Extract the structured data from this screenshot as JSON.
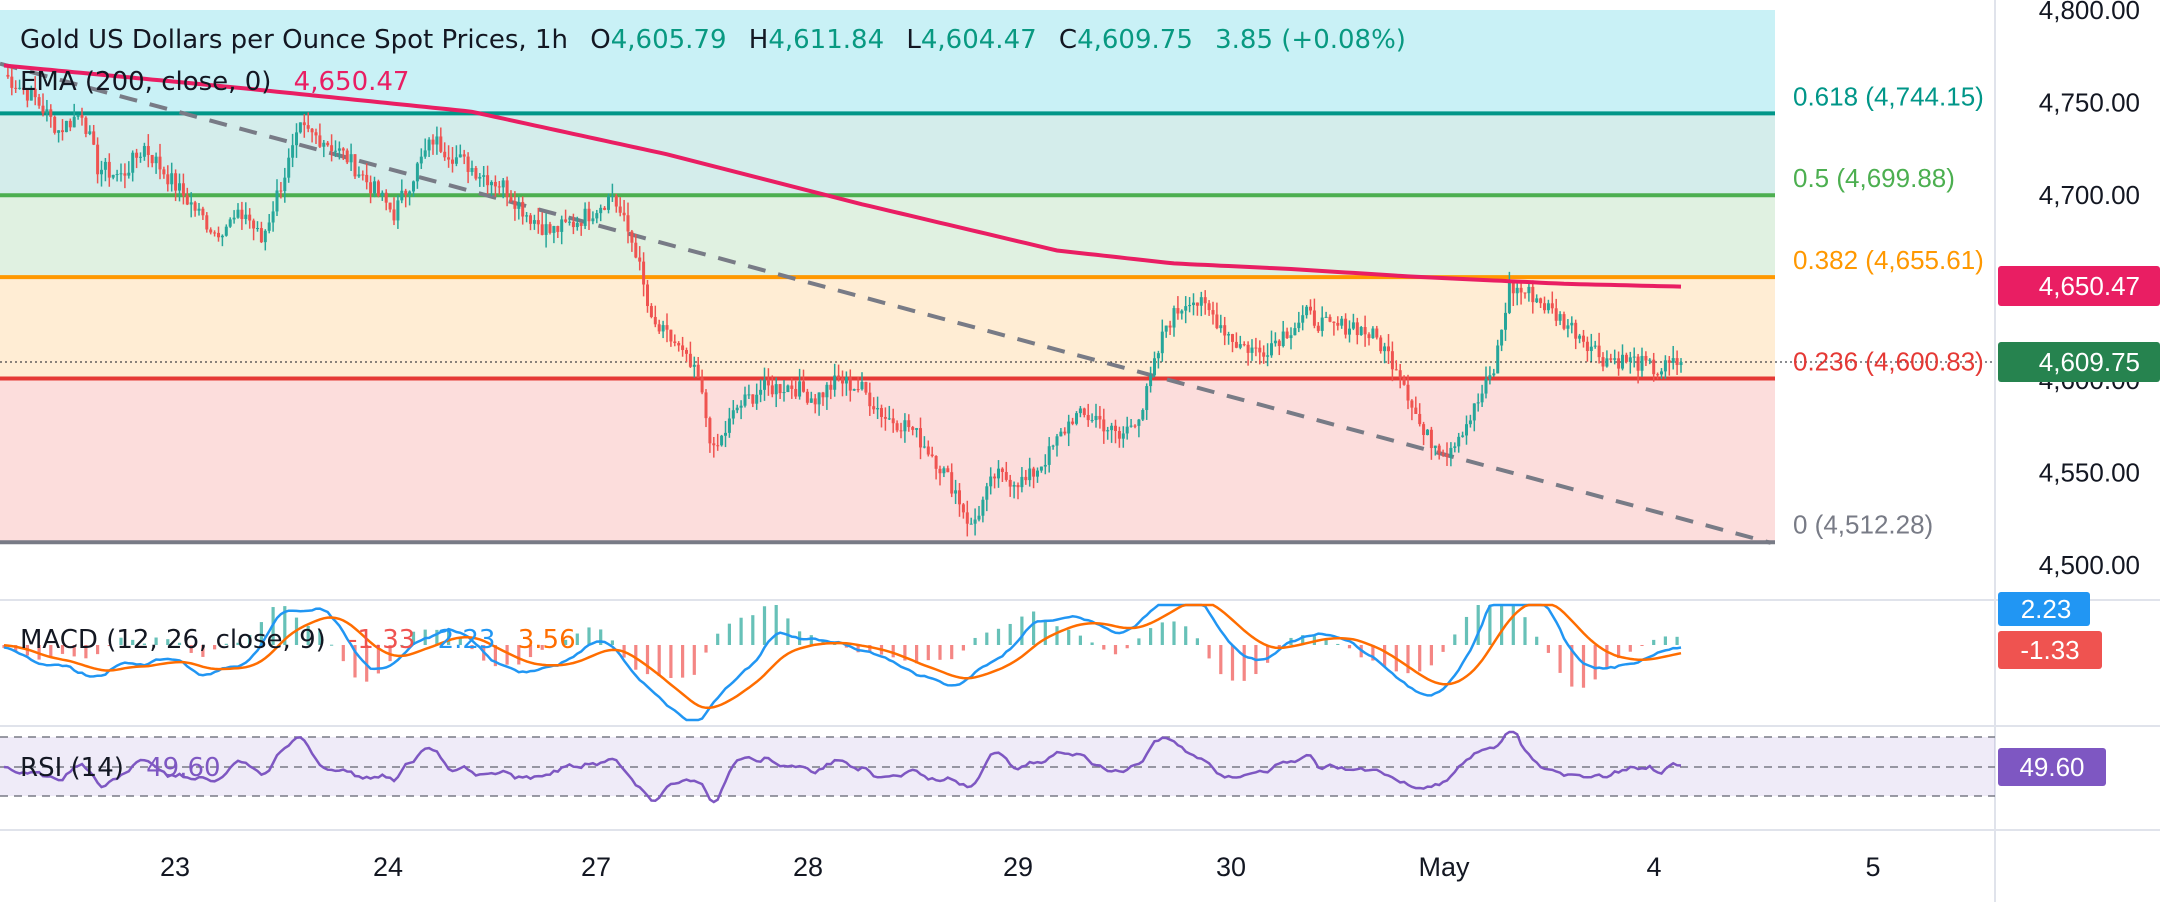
{
  "header": {
    "symbol": "Gold US Dollars per Ounce Spot Prices, 1h",
    "open_label": "O",
    "open": "4,605.79",
    "high_label": "H",
    "high": "4,611.84",
    "low_label": "L",
    "low": "4,604.47",
    "close_label": "C",
    "close": "4,609.75",
    "change": "3.85 (+0.08%)"
  },
  "ema_legend": {
    "label": "EMA (200, close, 0)",
    "value": "4,650.47"
  },
  "macd_legend": {
    "label": "MACD (12, 26, close, 9)",
    "hist": "-1.33",
    "macd": "2.23",
    "signal": "3.56"
  },
  "rsi_legend": {
    "label": "RSI (14)",
    "value": "49.60"
  },
  "price_axis": {
    "ticks": [
      "4,800.00",
      "4,750.00",
      "4,700.00",
      "4,650.00",
      "4,600.00",
      "4,550.00",
      "4,500.00"
    ]
  },
  "badges": {
    "ema": "4,650.47",
    "price": "4,609.75",
    "macd": "2.23",
    "hist": "-1.33",
    "rsi": "49.60"
  },
  "time_axis": {
    "labels": [
      "23",
      "24",
      "27",
      "28",
      "29",
      "30",
      "May",
      "4",
      "5"
    ]
  },
  "fib_levels": [
    {
      "label": "0.618 (4,744.15)",
      "ratio": 0.618,
      "price": 4744.15
    },
    {
      "label": "0.5 (4,699.88)",
      "ratio": 0.5,
      "price": 4699.88
    },
    {
      "label": "0.382 (4,655.61)",
      "ratio": 0.382,
      "price": 4655.61
    },
    {
      "label": "0.236 (4,600.83)",
      "ratio": 0.236,
      "price": 4600.83
    },
    {
      "label": "0 (4,512.28)",
      "ratio": 0,
      "price": 4512.28
    }
  ],
  "colors": {
    "up": "#26a69a",
    "down": "#ef5350",
    "ema": "#e91e63",
    "fib618": "#009688",
    "fib50": "#4caf50",
    "fib382": "#ff9800",
    "fib236": "#e53935",
    "fib0": "#787b86",
    "trend": "#787b86",
    "macd": "#2196f3",
    "signal": "#ff6d00",
    "rsi": "#7e57c2"
  },
  "chart_data": {
    "type": "candlestick",
    "title": "Gold US Dollars per Ounce Spot Prices, 1h",
    "ylim": [
      4500,
      4800
    ],
    "x_dates": [
      "23",
      "24",
      "27",
      "28",
      "29",
      "30",
      "May",
      "4",
      "5"
    ],
    "price_key_points": [
      [
        0,
        4765
      ],
      [
        8,
        4752
      ],
      [
        14,
        4735
      ],
      [
        20,
        4745
      ],
      [
        24,
        4715
      ],
      [
        30,
        4710
      ],
      [
        36,
        4726
      ],
      [
        42,
        4710
      ],
      [
        48,
        4695
      ],
      [
        54,
        4680
      ],
      [
        62,
        4690
      ],
      [
        66,
        4675
      ],
      [
        70,
        4700
      ],
      [
        76,
        4735
      ],
      [
        82,
        4730
      ],
      [
        88,
        4720
      ],
      [
        94,
        4705
      ],
      [
        100,
        4690
      ],
      [
        106,
        4715
      ],
      [
        110,
        4730
      ],
      [
        116,
        4720
      ],
      [
        122,
        4712
      ],
      [
        128,
        4705
      ],
      [
        134,
        4690
      ],
      [
        140,
        4680
      ],
      [
        146,
        4685
      ],
      [
        150,
        4690
      ],
      [
        156,
        4700
      ],
      [
        162,
        4670
      ],
      [
        166,
        4630
      ],
      [
        172,
        4620
      ],
      [
        178,
        4600
      ],
      [
        182,
        4560
      ],
      [
        188,
        4585
      ],
      [
        194,
        4595
      ],
      [
        202,
        4597
      ],
      [
        208,
        4590
      ],
      [
        214,
        4600
      ],
      [
        220,
        4595
      ],
      [
        226,
        4580
      ],
      [
        232,
        4575
      ],
      [
        238,
        4560
      ],
      [
        244,
        4540
      ],
      [
        248,
        4520
      ],
      [
        254,
        4548
      ],
      [
        262,
        4545
      ],
      [
        268,
        4560
      ],
      [
        274,
        4580
      ],
      [
        280,
        4580
      ],
      [
        286,
        4568
      ],
      [
        292,
        4585
      ],
      [
        298,
        4630
      ],
      [
        304,
        4645
      ],
      [
        310,
        4635
      ],
      [
        316,
        4620
      ],
      [
        322,
        4615
      ],
      [
        328,
        4625
      ],
      [
        334,
        4635
      ],
      [
        340,
        4628
      ],
      [
        346,
        4630
      ],
      [
        352,
        4622
      ],
      [
        358,
        4605
      ],
      [
        364,
        4570
      ],
      [
        370,
        4562
      ],
      [
        376,
        4580
      ],
      [
        382,
        4605
      ],
      [
        386,
        4650
      ],
      [
        392,
        4646
      ],
      [
        398,
        4635
      ],
      [
        404,
        4625
      ],
      [
        410,
        4612
      ],
      [
        418,
        4610
      ],
      [
        424,
        4605
      ],
      [
        430,
        4609.75
      ]
    ],
    "ema200_key_points": [
      [
        0,
        4770
      ],
      [
        60,
        4758
      ],
      [
        120,
        4745
      ],
      [
        170,
        4722
      ],
      [
        220,
        4695
      ],
      [
        270,
        4670
      ],
      [
        300,
        4663
      ],
      [
        330,
        4660
      ],
      [
        360,
        4656
      ],
      [
        400,
        4652
      ],
      [
        430,
        4650.47
      ]
    ],
    "trendline": {
      "start": [
        0,
        4771
      ],
      "end": [
        453,
        4512
      ]
    },
    "macd": {
      "macd": 2.23,
      "signal": 3.56,
      "histogram": -1.33
    },
    "rsi": {
      "period": 14,
      "value": 49.6,
      "levels": [
        70,
        50,
        30
      ]
    }
  }
}
